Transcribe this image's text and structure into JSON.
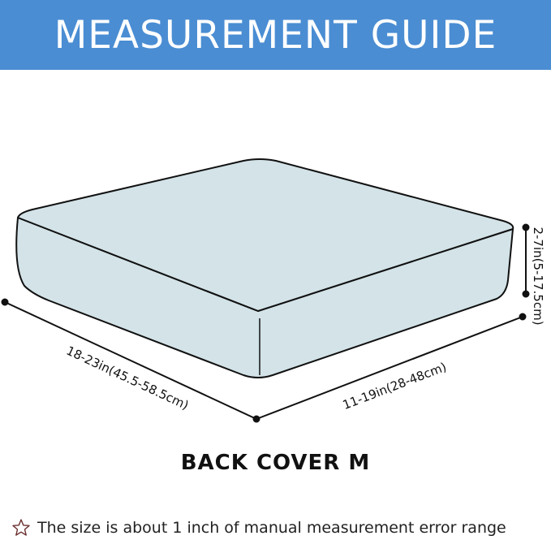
{
  "header": {
    "title": "MEASUREMENT GUIDE",
    "color": "#4a8dd3"
  },
  "diagram": {
    "cushion_color": "#d3e3e8",
    "length_label": "18-23in(45.5-58.5cm)",
    "width_label": "11-19in(28-48cm)",
    "height_label": "2-7in(5-17.5cm)"
  },
  "model_label": "BACK COVER M",
  "note": {
    "icon": "star-outline-icon",
    "text": "The size is about 1 inch of manual measurement error range"
  }
}
